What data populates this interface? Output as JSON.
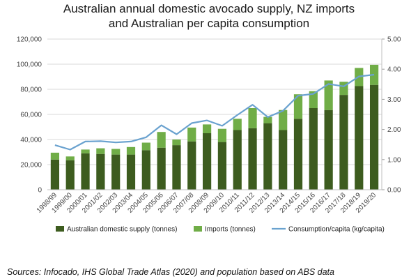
{
  "chart_data": {
    "type": "bar",
    "title_line1": "Australian annual domestic avocado supply, NZ imports",
    "title_line2": "and Australian per capita consumption",
    "categories": [
      "1998/99",
      "1999/00",
      "2000/01",
      "2001/02",
      "2002/03",
      "2003/04",
      "2004/05",
      "2005/06",
      "2006/07",
      "2007/08",
      "2008/09",
      "2009/10",
      "2010/11",
      "2011/12",
      "2012/13",
      "2013/14",
      "2014/15",
      "2015/16",
      "2016/17",
      "2017/18",
      "2018/19",
      "2019/20"
    ],
    "stacked": true,
    "series": [
      {
        "name": "Australian domestic supply (tonnes)",
        "color": "#3d5c1f",
        "values": [
          24000,
          23500,
          29000,
          28500,
          28000,
          28000,
          31500,
          33500,
          35500,
          38500,
          45000,
          38000,
          47500,
          49000,
          53000,
          47500,
          56500,
          65000,
          63500,
          75500,
          82500,
          83500
        ]
      },
      {
        "name": "Imports (tonnes)",
        "color": "#70ad47",
        "values": [
          5500,
          3000,
          3000,
          4500,
          4500,
          6000,
          6000,
          12500,
          4500,
          11000,
          7000,
          10500,
          9000,
          16000,
          5000,
          16000,
          19500,
          13500,
          23500,
          10500,
          14500,
          16000
        ]
      }
    ],
    "line_series": {
      "name": "Consumption/capita (kg/capita)",
      "color": "#6aa2cf",
      "values": [
        1.48,
        1.33,
        1.6,
        1.61,
        1.57,
        1.6,
        1.74,
        2.14,
        1.84,
        2.21,
        2.3,
        2.12,
        2.48,
        2.82,
        2.41,
        2.62,
        3.12,
        3.18,
        3.51,
        3.43,
        3.76,
        3.82
      ]
    },
    "ylim_left": [
      0,
      120000
    ],
    "yticks_left": [
      "0",
      "20,000",
      "40,000",
      "60,000",
      "80,000",
      "100,000",
      "120,000"
    ],
    "ylim_right": [
      0,
      5
    ],
    "yticks_right": [
      "0.00",
      "1.00",
      "2.00",
      "3.00",
      "4.00",
      "5.00"
    ],
    "grid": true,
    "legend": "bottom"
  },
  "source_note": "Sources: Infocado, IHS Global Trade Atlas (2020) and population based on ABS data"
}
